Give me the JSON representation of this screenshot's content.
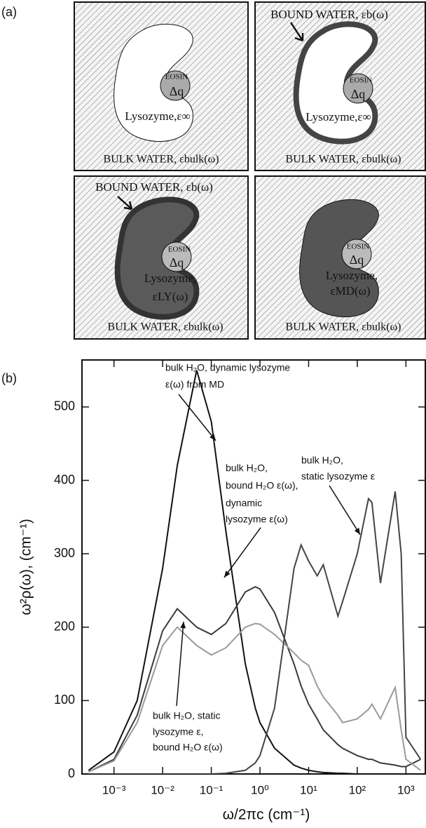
{
  "panel_labels": [
    "(a)",
    "(b)"
  ],
  "diagram": {
    "panels": [
      {
        "texts": [
          "EOSIN",
          "Δq",
          "Lysozyme,ε∞",
          "BULK WATER, εbulk(ω)"
        ]
      },
      {
        "texts": [
          "BOUND WATER, εb(ω)",
          "EOSIN",
          "Δq",
          "Lysozyme,ε∞",
          "BULK WATER, εbulk(ω)"
        ]
      },
      {
        "texts": [
          "BOUND WATER, εb(ω)",
          "EOSIN",
          "Δq",
          "Lysozyme,",
          "εLY(ω)",
          "BULK WATER, εbulk(ω)"
        ]
      },
      {
        "texts": [
          "EOSIN",
          "Δq",
          "Lysozyme,",
          "εMD(ω)",
          "BULK WATER, εbulk(ω)"
        ]
      }
    ]
  },
  "chart_data": {
    "type": "line",
    "log_x": true,
    "x_label": "ω/2πc (cm⁻¹)",
    "y_label": "ω²ρ(ω), (cm⁻¹)",
    "xlim": [
      0.00022,
      2500
    ],
    "ylim": [
      0,
      564
    ],
    "xticks": [
      {
        "value": 0.001,
        "label": "10⁻³"
      },
      {
        "value": 0.01,
        "label": "10⁻²"
      },
      {
        "value": 0.1,
        "label": "10⁻¹"
      },
      {
        "value": 1,
        "label": "10⁰"
      },
      {
        "value": 10,
        "label": "10¹"
      },
      {
        "value": 100,
        "label": "10²"
      },
      {
        "value": 1000,
        "label": "10³"
      }
    ],
    "yticks": [
      0,
      100,
      200,
      300,
      400,
      500
    ],
    "x": [
      0.0003,
      0.001,
      0.003,
      0.01,
      0.02,
      0.05,
      0.1,
      0.2,
      0.5,
      0.8,
      1,
      2,
      5,
      7,
      10,
      15,
      20,
      40,
      50,
      100,
      170,
      200,
      300,
      600,
      800,
      1000,
      2000
    ],
    "series": [
      {
        "color": "#111111",
        "values": [
          5,
          30,
          100,
          280,
          420,
          550,
          480,
          330,
          150,
          90,
          70,
          35,
          12,
          8,
          5,
          3,
          2,
          1,
          1,
          0,
          0,
          0,
          0,
          0,
          0,
          0,
          0
        ]
      },
      {
        "color": "#3a3a3a",
        "values": [
          3,
          20,
          80,
          195,
          225,
          200,
          190,
          205,
          248,
          255,
          252,
          220,
          150,
          120,
          95,
          75,
          60,
          40,
          35,
          25,
          20,
          20,
          15,
          12,
          10,
          10,
          20
        ]
      },
      {
        "color": "#9a9a9a",
        "values": [
          3,
          18,
          70,
          175,
          200,
          175,
          162,
          172,
          200,
          205,
          204,
          190,
          165,
          155,
          148,
          120,
          105,
          80,
          70,
          75,
          88,
          95,
          75,
          118,
          60,
          20,
          5
        ]
      },
      {
        "color": "#444444",
        "values": [
          0,
          0,
          0,
          0,
          0,
          0,
          0,
          1,
          5,
          15,
          25,
          90,
          280,
          312,
          290,
          270,
          285,
          215,
          235,
          300,
          375,
          370,
          260,
          385,
          300,
          50,
          20
        ]
      }
    ],
    "annotations": [
      [
        "bulk H₂O, dynamic lysozyme",
        "ε(ω) from MD"
      ],
      [
        "bulk H₂O,",
        "bound H₂O ε(ω),",
        "dynamic",
        "lysozyme ε(ω)"
      ],
      [
        "bulk H₂O,",
        "static lysozyme ε"
      ],
      [
        "bulk H₂O, static",
        "lysozyme ε,",
        "bound H₂O ε(ω)"
      ]
    ]
  }
}
